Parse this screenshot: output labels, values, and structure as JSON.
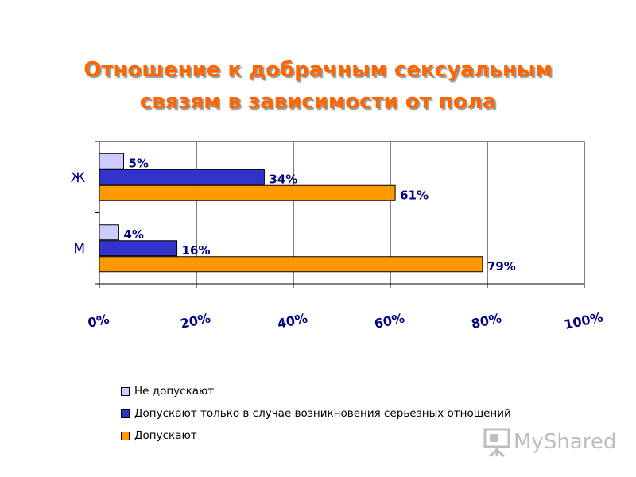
{
  "title": {
    "line1": "Отношение к добрачным сексуальным",
    "line2": "связям в зависимости от пола"
  },
  "chart_data": {
    "type": "bar",
    "orientation": "horizontal",
    "categories": [
      "Ж",
      "М"
    ],
    "series": [
      {
        "name": "Не допускают",
        "color": "#ccccff",
        "values": [
          5,
          4
        ],
        "labels": [
          "5%",
          "4%"
        ]
      },
      {
        "name": "Допускают только в случае возникновения серьезных отношений",
        "color": "#3333cc",
        "values": [
          34,
          16
        ],
        "labels": [
          "34%",
          "16%"
        ]
      },
      {
        "name": "Допускают",
        "color": "#ff9900",
        "values": [
          61,
          79
        ],
        "labels": [
          "61%",
          "79%"
        ]
      }
    ],
    "xlim": [
      0,
      100
    ],
    "xticks": [
      0,
      20,
      40,
      60,
      80,
      100
    ],
    "xtick_labels": [
      "0%",
      "20%",
      "40%",
      "60%",
      "80%",
      "100%"
    ],
    "grid": true,
    "legend_position": "bottom",
    "label_color": "#000080"
  },
  "watermark": {
    "text": "MyShared",
    "icon": "presentation-board-icon"
  }
}
